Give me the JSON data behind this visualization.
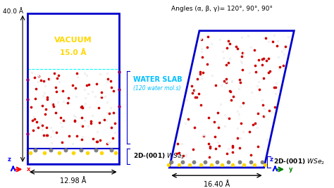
{
  "bg_color": "#ffffff",
  "vacuum_label": "VACUUM",
  "vacuum_angstrom": "15.0 Å",
  "water_slab_label": "WATER SLAB",
  "water_slab_sub": "(120 water mol.s)",
  "width_label_left": "12.98 Å",
  "width_label_right": "16.40 Å",
  "height_label": "40.0 Å",
  "angles_label": "Angles (α, β, γ)= 120°, 90°, 90°",
  "wse2_label": "2D-(001) WSe$_2$",
  "blue_line_color": "#0000CC",
  "yellow_color": "#FFD700",
  "gray_color": "#808080",
  "red_color": "#CC0000",
  "white_color": "#FFFFFF",
  "vacuum_color": "#FFD700",
  "water_slab_color": "#00BFFF",
  "purple_color": "#800080",
  "axis_color_z": "#0000FF",
  "axis_color_x": "#FF0000",
  "axis_color_y": "#00CC00"
}
